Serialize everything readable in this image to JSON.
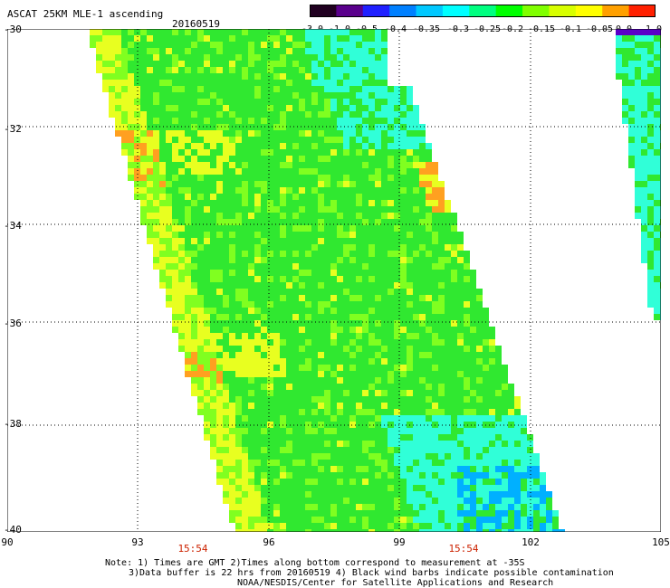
{
  "title": "ASCAT 25KM MLE-1 ascending",
  "date": "20160519",
  "colorbar": {
    "labels": [
      "-3.0",
      "-1.0",
      "-0.5",
      "-0.4",
      "-0.35",
      "-0.3",
      "-0.25",
      "-0.2",
      "-0.15",
      "-0.1",
      "-0.05",
      "0.0",
      "1.0"
    ],
    "colors": [
      "#200020",
      "#5a008c",
      "#2020ff",
      "#0080ff",
      "#00c8ff",
      "#00ffff",
      "#00ff80",
      "#00ff00",
      "#80ff00",
      "#d8ff00",
      "#ffff00",
      "#ffa000",
      "#ff2000"
    ]
  },
  "axes": {
    "lat_labels": [
      "-30",
      "-32",
      "-34",
      "-36",
      "-38",
      "-40"
    ],
    "lon_labels": [
      "90",
      "93",
      "96",
      "99",
      "102",
      "105"
    ]
  },
  "times": [
    "15:54",
    "15:54"
  ],
  "notes": {
    "line1": "Note: 1) Times are GMT 2)Times along bottom correspond to measurement at -35S",
    "line2": "3)Data buffer is 22 hrs from 20160519 4) Black wind barbs indicate possible contamination",
    "line3": "NOAA/NESDIS/Center for Satellite Applications and Research"
  },
  "map_colors": {
    "green": "#30e830",
    "lime": "#80ff20",
    "yellow": "#e8ff20",
    "orange": "#ffa020",
    "cyan": "#30ffd8",
    "blue": "#00b0ff"
  }
}
